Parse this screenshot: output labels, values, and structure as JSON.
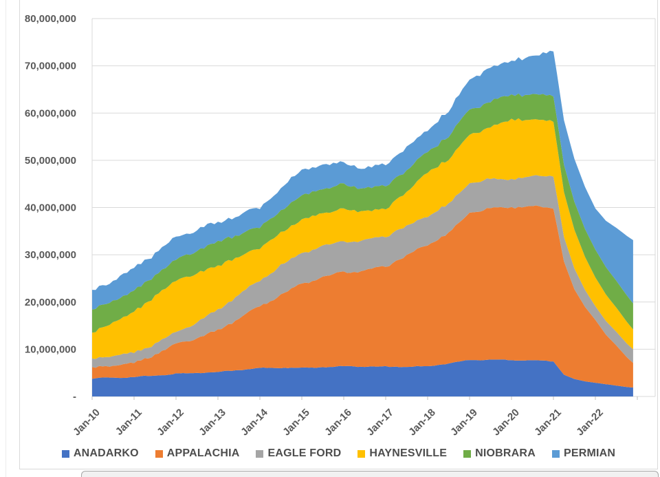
{
  "chart_data": {
    "type": "area",
    "stacked": true,
    "title": "",
    "y_axis": {
      "min": 0,
      "max": 80000000,
      "gridline_step": 10000000,
      "tick_labels": [
        "80,000,000",
        "70,000,000",
        "60,000,000",
        "50,000,000",
        "40,000,000",
        "30,000,000",
        "20,000,000",
        "10,000,000",
        "-"
      ]
    },
    "x_axis": {
      "tick_labels": [
        "Jan-10",
        "Jan-11",
        "Jan-12",
        "Jan-13",
        "Jan-14",
        "Jan-15",
        "Jan-16",
        "Jan-17",
        "Jan-18",
        "Jan-19",
        "Jan-20",
        "Jan-21",
        "Jan-22"
      ],
      "data_start": "Jan-10",
      "data_end": "Dec-22"
    },
    "value_unit_multiplier": 1000000,
    "anchor_dates": [
      "2010-01",
      "2010-07",
      "2011-01",
      "2011-07",
      "2012-01",
      "2012-07",
      "2013-01",
      "2013-07",
      "2014-01",
      "2014-07",
      "2015-01",
      "2015-07",
      "2016-01",
      "2016-07",
      "2017-01",
      "2017-07",
      "2018-01",
      "2018-07",
      "2019-01",
      "2019-07",
      "2020-01",
      "2020-07",
      "2021-01",
      "2021-04",
      "2021-07",
      "2021-10",
      "2022-01",
      "2022-04",
      "2022-07",
      "2022-10",
      "2022-12"
    ],
    "anchors_t": [
      0,
      0.5,
      1,
      1.5,
      2,
      2.5,
      3,
      3.5,
      4,
      4.5,
      5,
      5.5,
      6,
      6.5,
      7,
      7.5,
      8,
      8.5,
      9,
      9.5,
      10,
      10.5,
      11,
      11.25,
      11.5,
      11.75,
      12,
      12.25,
      12.5,
      12.75,
      12.9
    ],
    "series": [
      {
        "name": "ANADARKO",
        "color": "#4472C4",
        "values_millions": [
          3.8,
          4.0,
          4.1,
          4.4,
          4.8,
          5.0,
          5.2,
          5.6,
          6.0,
          6.1,
          6.0,
          6.2,
          6.4,
          6.3,
          6.3,
          6.3,
          6.4,
          7.0,
          7.7,
          7.8,
          7.7,
          7.7,
          7.4,
          4.6,
          3.7,
          3.2,
          2.9,
          2.6,
          2.3,
          2.0,
          1.9
        ]
      },
      {
        "name": "APPALACHIA",
        "color": "#ED7D31",
        "values_millions": [
          2.2,
          2.5,
          2.9,
          4.5,
          6.3,
          7.5,
          8.8,
          11.0,
          13.1,
          15.5,
          17.8,
          19.0,
          20.0,
          20.2,
          21.3,
          23.5,
          25.8,
          27.5,
          31.3,
          32.0,
          32.5,
          32.5,
          32.5,
          24.0,
          19.0,
          15.8,
          13.3,
          10.5,
          8.5,
          6.3,
          5.2
        ]
      },
      {
        "name": "EAGLE FORD",
        "color": "#A5A5A5",
        "values_millions": [
          1.9,
          2.0,
          2.2,
          2.3,
          2.5,
          3.3,
          4.4,
          5.0,
          5.5,
          6.2,
          6.5,
          6.6,
          6.5,
          6.4,
          6.4,
          6.2,
          6.1,
          6.2,
          6.3,
          6.2,
          5.9,
          6.4,
          6.8,
          5.2,
          4.4,
          3.6,
          2.9,
          2.9,
          2.9,
          2.9,
          2.9
        ]
      },
      {
        "name": "HAYNESVILLE",
        "color": "#FFC000",
        "values_millions": [
          5.6,
          7.0,
          8.7,
          10.0,
          10.9,
          10.3,
          9.4,
          8.0,
          6.9,
          6.9,
          7.0,
          7.0,
          6.9,
          6.1,
          5.8,
          7.3,
          9.2,
          9.4,
          10.2,
          11.0,
          12.6,
          12.0,
          11.6,
          9.5,
          8.2,
          7.0,
          6.1,
          5.6,
          5.1,
          4.6,
          4.2
        ]
      },
      {
        "name": "NIOBRARA",
        "color": "#70AD47",
        "values_millions": [
          4.9,
          4.6,
          4.4,
          4.4,
          4.5,
          4.8,
          5.1,
          4.7,
          4.4,
          4.7,
          5.1,
          5.2,
          5.2,
          4.9,
          4.8,
          4.6,
          4.4,
          4.9,
          5.4,
          5.4,
          5.3,
          5.3,
          5.4,
          5.8,
          5.9,
          5.9,
          5.9,
          5.8,
          5.7,
          5.6,
          5.5
        ]
      },
      {
        "name": "PERMIAN",
        "color": "#5B9BD5",
        "values_millions": [
          4.0,
          4.4,
          4.8,
          4.8,
          4.7,
          4.4,
          4.1,
          4.0,
          4.0,
          4.7,
          5.4,
          5.0,
          4.7,
          4.0,
          4.7,
          4.7,
          4.7,
          5.2,
          6.6,
          7.0,
          7.3,
          8.0,
          9.6,
          9.4,
          9.1,
          8.9,
          8.7,
          9.8,
          11.2,
          12.6,
          13.4
        ]
      }
    ],
    "legend_position": "bottom",
    "grid_on": true,
    "styles": {
      "gridline_color": "#d9d9d9",
      "tick_color": "#bfbfbf",
      "axis_label_color": "#595959",
      "legend_label_color": "#4d4d4d",
      "plot_background": "#ffffff"
    }
  }
}
